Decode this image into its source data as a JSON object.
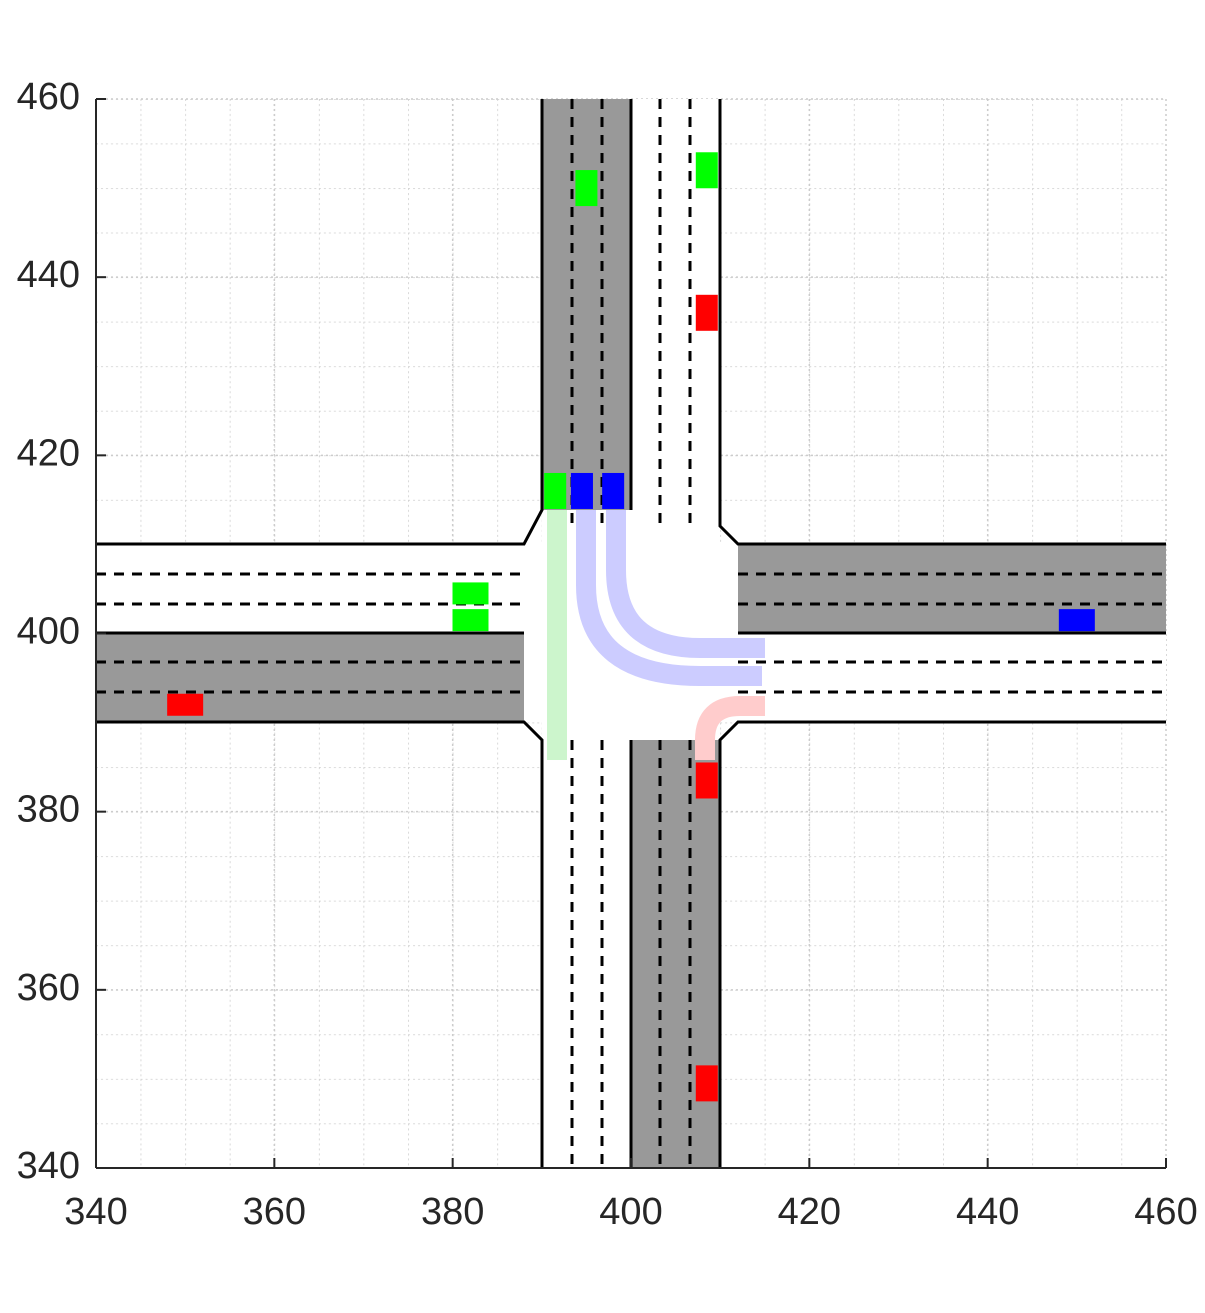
{
  "chart_data": {
    "type": "scatter",
    "xlim": [
      340,
      460
    ],
    "ylim": [
      340,
      460
    ],
    "xticks": [
      340,
      360,
      380,
      400,
      420,
      440,
      460
    ],
    "yticks": [
      340,
      360,
      380,
      400,
      420,
      440,
      460
    ],
    "grid": true,
    "series": [
      {
        "color": "#00ff00",
        "x": [
          395,
          408.5,
          391.5,
          382,
          382
        ],
        "y": [
          450,
          452,
          416,
          404.5,
          401.5
        ],
        "orientation": [
          "vertical",
          "vertical",
          "vertical",
          "horizontal",
          "horizontal"
        ]
      },
      {
        "color": "#0000ff",
        "x": [
          394.5,
          398,
          450
        ],
        "y": [
          416,
          416,
          401.5
        ],
        "orientation": [
          "vertical",
          "vertical",
          "horizontal"
        ]
      },
      {
        "color": "#ff0000",
        "x": [
          408.5,
          350,
          408.5,
          408.5
        ],
        "y": [
          436,
          392,
          383.5,
          349.5
        ],
        "orientation": [
          "vertical",
          "horizontal",
          "vertical",
          "vertical"
        ]
      }
    ]
  }
}
